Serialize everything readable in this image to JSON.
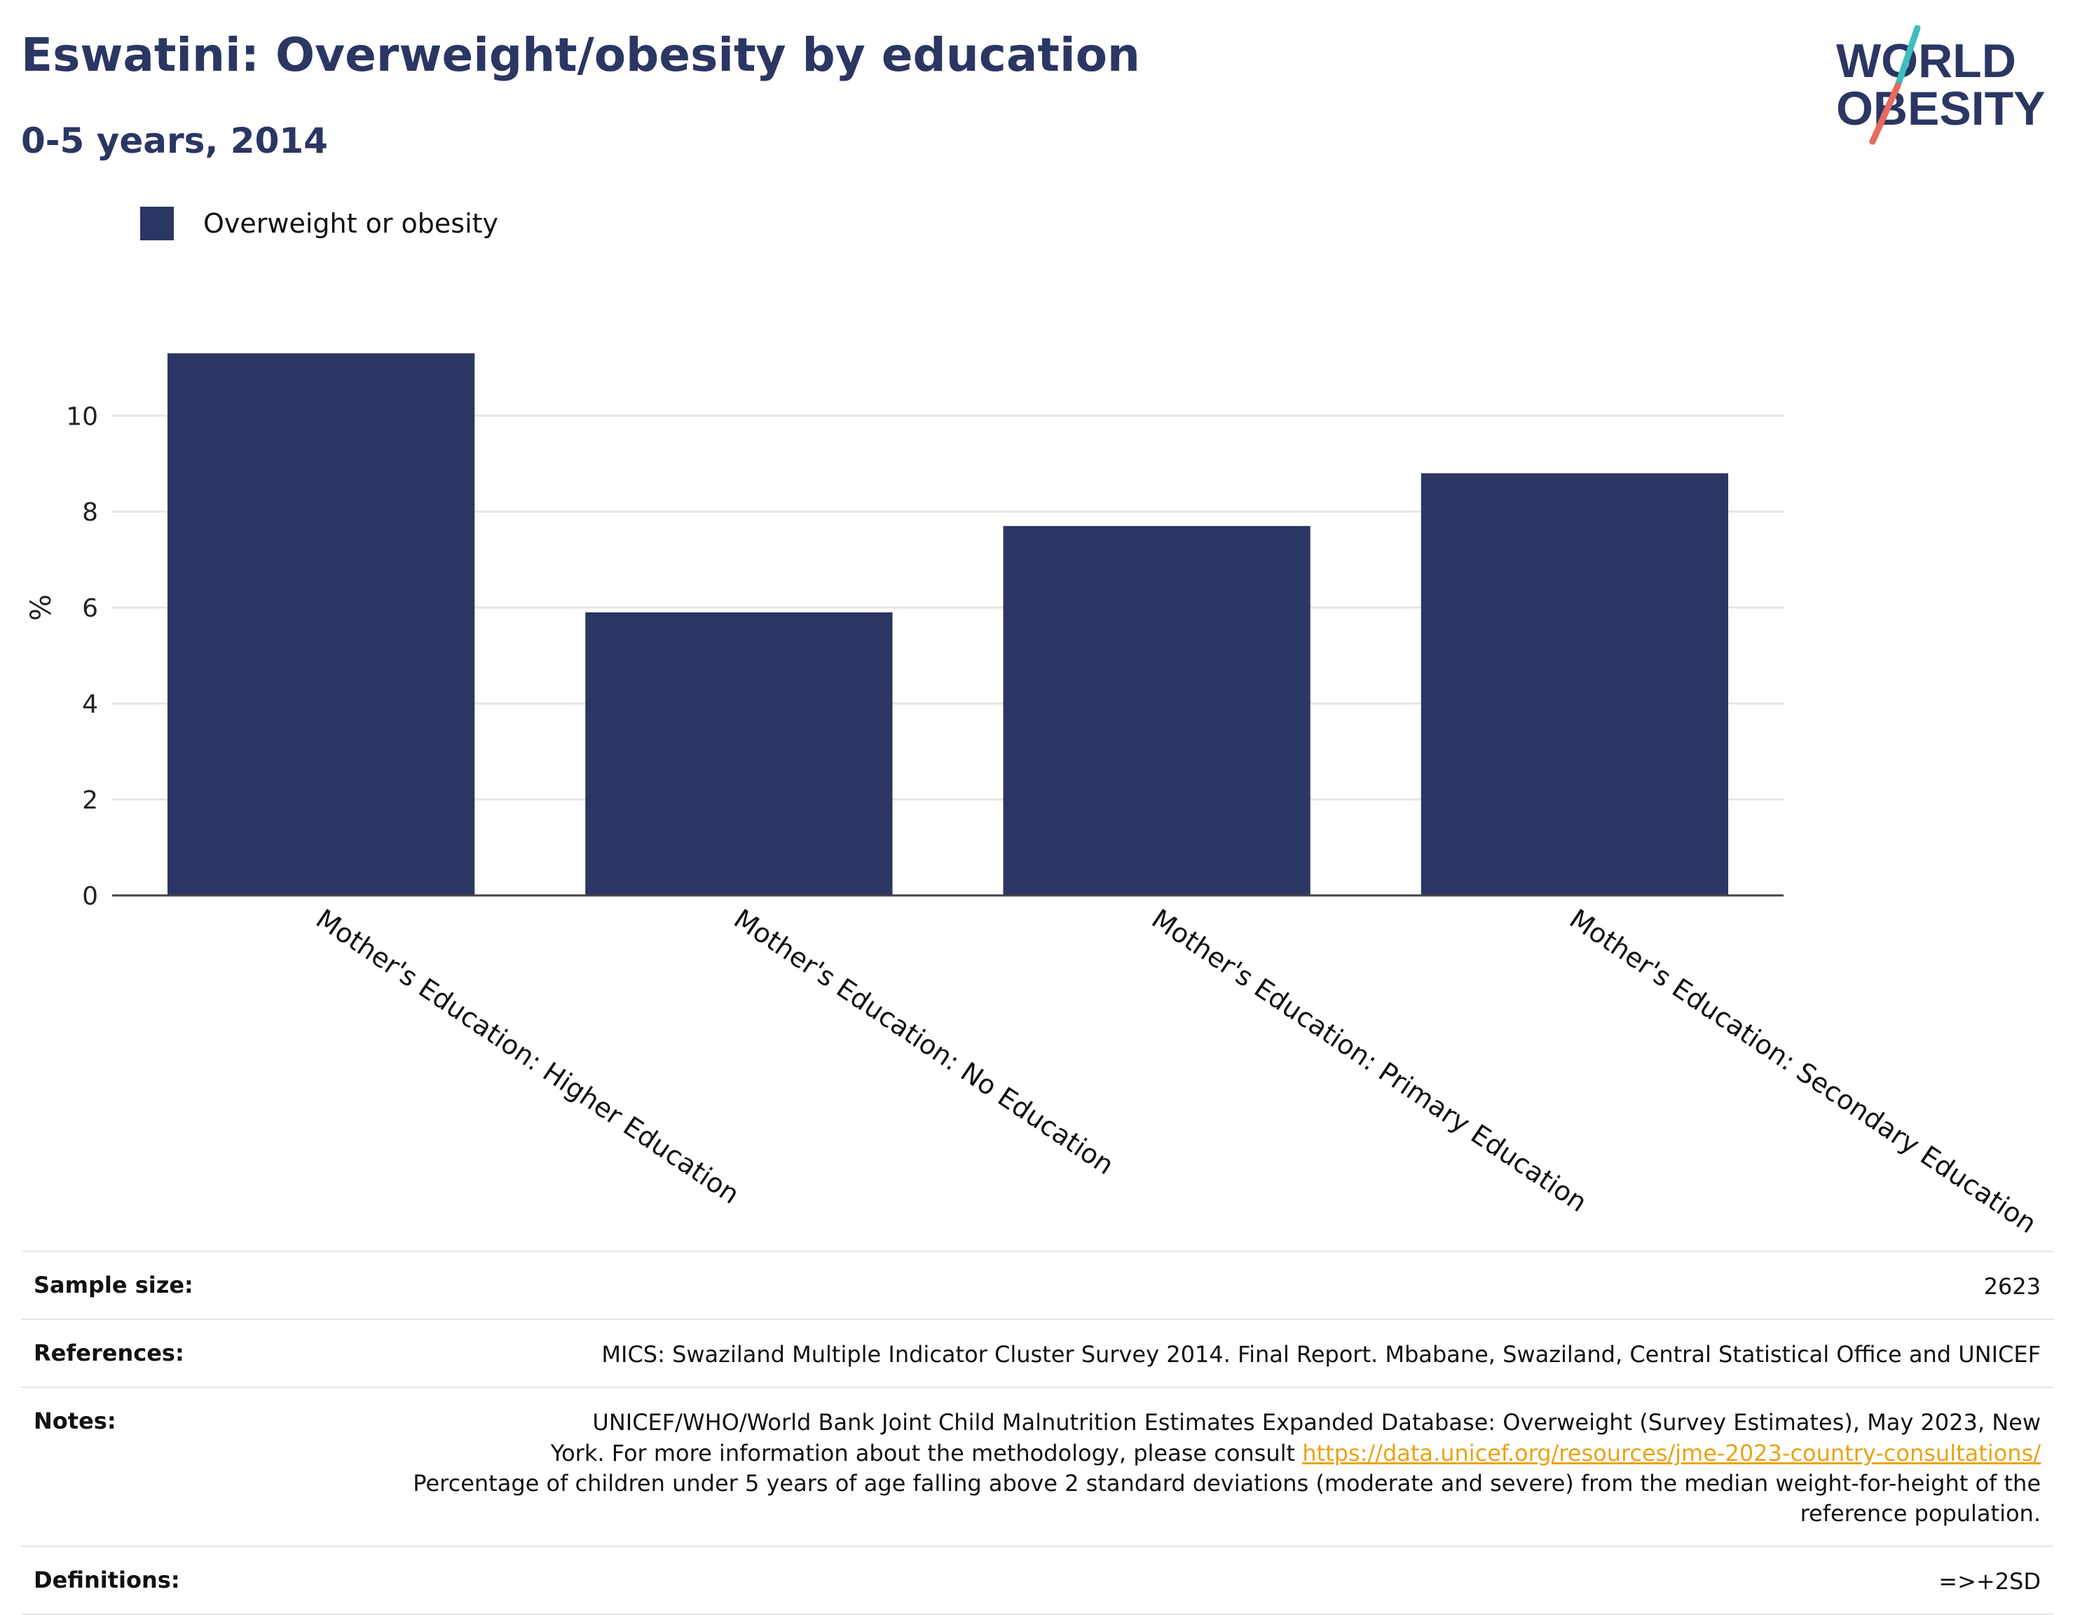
{
  "header": {
    "title": "Eswatini: Overweight/obesity by education",
    "subtitle": "0-5 years, 2014"
  },
  "logo": {
    "line1": "WORLD",
    "line2": "OBESITY",
    "colors": {
      "text": "#2b3663",
      "slash_top": "#3cbfbf",
      "slash_bottom": "#e86a5c"
    }
  },
  "legend": {
    "label": "Overweight or obesity",
    "color": "#2b3663"
  },
  "chart_data": {
    "type": "bar",
    "categories": [
      "Mother's Education: Higher Education",
      "Mother's Education: No Education",
      "Mother's Education: Primary Education",
      "Mother's Education: Secondary Education"
    ],
    "series": [
      {
        "name": "Overweight or obesity",
        "values": [
          11.3,
          5.9,
          7.7,
          8.8
        ],
        "color": "#2b3663"
      }
    ],
    "ylabel": "%",
    "yticks": [
      0,
      2,
      4,
      6,
      8,
      10
    ],
    "ylim": [
      0,
      11.8
    ],
    "grid": true
  },
  "footer": {
    "sample_size": {
      "label": "Sample size:",
      "value": "2623"
    },
    "references": {
      "label": "References:",
      "value": "MICS: Swaziland Multiple Indicator Cluster Survey 2014. Final Report. Mbabane, Swaziland, Central Statistical Office and UNICEF"
    },
    "notes": {
      "label": "Notes:",
      "line1": "UNICEF/WHO/World Bank Joint Child Malnutrition Estimates Expanded Database: Overweight (Survey Estimates), May 2023, New",
      "line2_prefix": "York. For more information about the methodology, please consult ",
      "link": "https://data.unicef.org/resources/jme-2023-country-consultations/",
      "line3": "Percentage of children under 5 years of age falling above 2 standard deviations (moderate and severe) from the median weight-for-height of the reference population."
    },
    "definitions": {
      "label": "Definitions:",
      "value": "=>+2SD"
    }
  }
}
